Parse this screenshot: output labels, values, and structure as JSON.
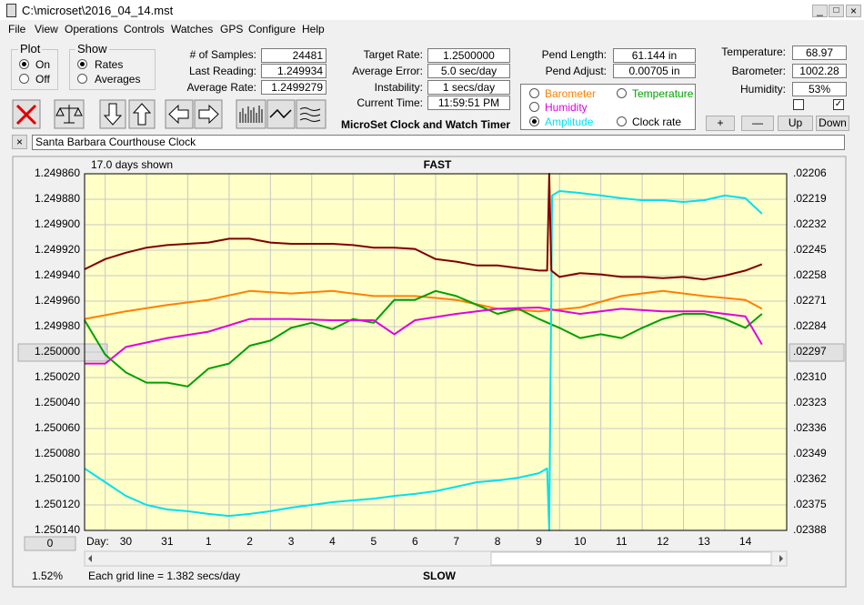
{
  "window": {
    "title": "C:\\microset\\2016_04_14.mst"
  },
  "menu": [
    "File",
    "View",
    "Operations",
    "Controls",
    "Watches",
    "GPS",
    "Configure",
    "Help"
  ],
  "plot_group": {
    "title": "Plot",
    "options": [
      "On",
      "Off"
    ]
  },
  "show_group": {
    "title": "Show",
    "options": [
      "Rates",
      "Averages"
    ]
  },
  "stats": [
    {
      "label": "# of Samples:",
      "value": "24481"
    },
    {
      "label": "Last Reading:",
      "value": "1.249934"
    },
    {
      "label": "Average Rate:",
      "value": "1.2499279"
    }
  ],
  "timing": [
    {
      "label": "Target Rate:",
      "value": "1.2500000"
    },
    {
      "label": "Average Error:",
      "value": "5.0 sec/day"
    },
    {
      "label": "Instability:",
      "value": "1 secs/day"
    },
    {
      "label": "Current Time:",
      "value": "11:59:51 PM"
    }
  ],
  "pendulum": [
    {
      "label": "Pend Length:",
      "value": "61.144 in"
    },
    {
      "label": "Pend Adjust:",
      "value": "0.00705 in"
    }
  ],
  "environment": [
    {
      "label": "Temperature:",
      "value": "68.97"
    },
    {
      "label": "Barometer:",
      "value": "1002.28"
    },
    {
      "label": "Humidity:",
      "value": "53%"
    }
  ],
  "app_title": "MicroSet Clock and Watch Timer",
  "adjust_buttons": [
    "+",
    "—",
    "Up",
    "Down"
  ],
  "clock_name": "Santa Barbara Courthouse Clock",
  "status": {
    "percent": "1.52%",
    "grid_note": "Each grid line = 1.382 secs/day",
    "offset_button": "0"
  },
  "chart_data": {
    "type": "line",
    "days_shown": "17.0 days shown",
    "top_label": "FAST",
    "bottom_label": "SLOW",
    "x_label": "Day:",
    "xlim": [
      0,
      17
    ],
    "xticks": [
      {
        "value": 0.5,
        "label": "30"
      },
      {
        "value": 1.5,
        "label": "31"
      },
      {
        "value": 2.5,
        "label": "1"
      },
      {
        "value": 3.5,
        "label": "2"
      },
      {
        "value": 4.5,
        "label": "3"
      },
      {
        "value": 5.5,
        "label": "4"
      },
      {
        "value": 6.5,
        "label": "5"
      },
      {
        "value": 7.5,
        "label": "6"
      },
      {
        "value": 8.5,
        "label": "7"
      },
      {
        "value": 9.5,
        "label": "8"
      },
      {
        "value": 10.5,
        "label": "9"
      },
      {
        "value": 11.5,
        "label": "10"
      },
      {
        "value": 12.5,
        "label": "11"
      },
      {
        "value": 13.5,
        "label": "12"
      },
      {
        "value": 14.5,
        "label": "13"
      },
      {
        "value": 15.5,
        "label": "14"
      }
    ],
    "ylim": [
      1.25014,
      1.24986
    ],
    "yticks": [
      {
        "value": 1.24986,
        "label": "1.249860"
      },
      {
        "value": 1.24988,
        "label": "1.249880"
      },
      {
        "value": 1.2499,
        "label": "1.249900"
      },
      {
        "value": 1.24992,
        "label": "1.249920"
      },
      {
        "value": 1.24994,
        "label": "1.249940"
      },
      {
        "value": 1.24996,
        "label": "1.249960"
      },
      {
        "value": 1.24998,
        "label": "1.249980"
      },
      {
        "value": 1.25,
        "label": "1.250000"
      },
      {
        "value": 1.25002,
        "label": "1.250020"
      },
      {
        "value": 1.25004,
        "label": "1.250040"
      },
      {
        "value": 1.25006,
        "label": "1.250060"
      },
      {
        "value": 1.25008,
        "label": "1.250080"
      },
      {
        "value": 1.2501,
        "label": "1.250100"
      },
      {
        "value": 1.25012,
        "label": "1.250120"
      },
      {
        "value": 1.25014,
        "label": "1.250140"
      }
    ],
    "y2lim": [
      0.02388,
      0.02206
    ],
    "y2ticks": [
      {
        "value": 0.02206,
        "label": ".02206"
      },
      {
        "value": 0.02219,
        "label": ".02219"
      },
      {
        "value": 0.02232,
        "label": ".02232"
      },
      {
        "value": 0.02245,
        "label": ".02245"
      },
      {
        "value": 0.02258,
        "label": ".02258"
      },
      {
        "value": 0.02271,
        "label": ".02271"
      },
      {
        "value": 0.02284,
        "label": ".02284"
      },
      {
        "value": 0.02297,
        "label": ".02297"
      },
      {
        "value": 0.0231,
        "label": ".02310"
      },
      {
        "value": 0.02323,
        "label": ".02323"
      },
      {
        "value": 0.02336,
        "label": ".02336"
      },
      {
        "value": 0.02349,
        "label": ".02349"
      },
      {
        "value": 0.02362,
        "label": ".02362"
      },
      {
        "value": 0.02375,
        "label": ".02375"
      },
      {
        "value": 0.02388,
        "label": ".02388"
      }
    ],
    "grid": true,
    "background": "#ffffc8",
    "series": [
      {
        "name": "Barometer",
        "color": "#ff8000",
        "x": [
          0,
          1,
          2,
          3,
          4,
          5,
          6,
          7,
          8,
          9,
          10,
          11,
          12,
          13,
          14,
          15,
          16,
          16.4
        ],
        "values": [
          1.249974,
          1.249968,
          1.249963,
          1.249959,
          1.249952,
          1.249954,
          1.249952,
          1.249956,
          1.249956,
          1.249959,
          1.249966,
          1.249968,
          1.249965,
          1.249956,
          1.249952,
          1.249956,
          1.249959,
          1.249966
        ]
      },
      {
        "name": "Temperature",
        "color": "#00a000",
        "x": [
          0,
          0.5,
          1,
          1.5,
          2,
          2.5,
          3,
          3.5,
          4,
          4.5,
          5,
          5.5,
          6,
          6.5,
          7,
          7.5,
          8,
          8.5,
          9,
          9.5,
          10,
          10.5,
          11,
          11.5,
          12,
          12.5,
          13,
          13.5,
          14,
          14.5,
          15,
          15.5,
          16,
          16.4
        ],
        "values": [
          1.249975,
          1.250002,
          1.250016,
          1.250024,
          1.250024,
          1.250027,
          1.250013,
          1.250009,
          1.249995,
          1.249991,
          1.249981,
          1.249977,
          1.249982,
          1.249974,
          1.249977,
          1.249959,
          1.249959,
          1.249952,
          1.249956,
          1.249963,
          1.24997,
          1.249966,
          1.249974,
          1.249981,
          1.249989,
          1.249986,
          1.249989,
          1.249981,
          1.249974,
          1.24997,
          1.24997,
          1.249974,
          1.249981,
          1.24997
        ]
      },
      {
        "name": "Humidity",
        "color": "#e000e0",
        "x": [
          0,
          0.5,
          1,
          2,
          3,
          4,
          5,
          6,
          7,
          7.5,
          8,
          9,
          10,
          11,
          12,
          13,
          14,
          15,
          16,
          16.4
        ],
        "values": [
          1.250009,
          1.250009,
          1.249996,
          1.249989,
          1.249984,
          1.249974,
          1.249974,
          1.249975,
          1.249975,
          1.249986,
          1.249975,
          1.24997,
          1.249966,
          1.249965,
          1.24997,
          1.249966,
          1.249968,
          1.249968,
          1.249972,
          1.249994
        ]
      },
      {
        "name": "Amplitude",
        "color": "#00e0f0",
        "axis": "y2",
        "x": [
          0,
          0.5,
          1,
          1.5,
          2,
          2.5,
          3,
          3.5,
          4,
          4.5,
          5,
          5.5,
          6,
          6.5,
          7,
          7.5,
          8,
          8.5,
          9,
          9.5,
          10,
          10.5,
          11,
          11.2,
          11.25,
          11.32,
          11.5,
          12,
          12.5,
          13,
          13.5,
          14,
          14.5,
          15,
          15.5,
          16,
          16.4
        ],
        "values": [
          0.023564,
          0.023634,
          0.023704,
          0.02375,
          0.023773,
          0.023782,
          0.023796,
          0.023806,
          0.023796,
          0.023782,
          0.023764,
          0.02375,
          0.023736,
          0.023727,
          0.023718,
          0.023704,
          0.023694,
          0.02368,
          0.023657,
          0.023634,
          0.023625,
          0.023611,
          0.023588,
          0.023564,
          0.02388,
          0.022171,
          0.022148,
          0.022158,
          0.022171,
          0.022185,
          0.022195,
          0.022195,
          0.022204,
          0.022195,
          0.022171,
          0.022185,
          0.022264
        ]
      },
      {
        "name": "Clock rate",
        "color": "#800000",
        "x": [
          0,
          0.5,
          1,
          1.5,
          2,
          2.5,
          3,
          3.5,
          4,
          4.5,
          5,
          5.5,
          6,
          6.5,
          7,
          7.5,
          8,
          8.5,
          9,
          9.5,
          10,
          10.5,
          11,
          11.2,
          11.25,
          11.3,
          11.5,
          12,
          12.5,
          13,
          13.5,
          14,
          14.5,
          15,
          15.5,
          16,
          16.4
        ],
        "values": [
          1.249935,
          1.249927,
          1.249922,
          1.249918,
          1.249916,
          1.249915,
          1.249914,
          1.249911,
          1.249911,
          1.249914,
          1.249915,
          1.249915,
          1.249915,
          1.249916,
          1.249918,
          1.249918,
          1.249919,
          1.249927,
          1.249929,
          1.249932,
          1.249932,
          1.249934,
          1.249936,
          1.249936,
          1.24986,
          1.249936,
          1.249941,
          1.249938,
          1.249939,
          1.249941,
          1.249941,
          1.249942,
          1.249941,
          1.249943,
          1.24994,
          1.249936,
          1.249931
        ]
      }
    ]
  }
}
